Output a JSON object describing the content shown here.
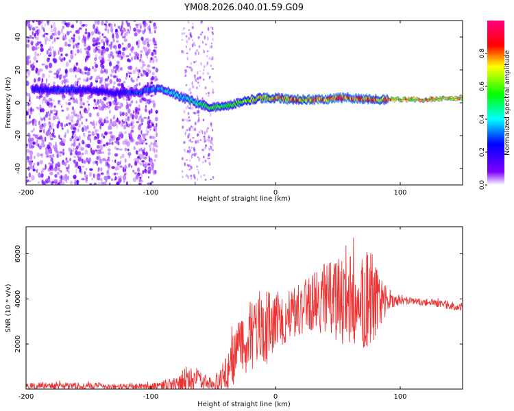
{
  "figure": {
    "title": "YM08.2026.040.01.59.G09"
  },
  "chart_data": [
    {
      "type": "heatmap",
      "name": "spectrogram",
      "title": "",
      "xlabel": "Height of straight line (km)",
      "ylabel": "Frequency (Hz)",
      "xlim": [
        -200,
        150
      ],
      "ylim": [
        -50,
        50
      ],
      "xticks": [
        -200,
        -100,
        0,
        100
      ],
      "yticks": [
        -40,
        -20,
        0,
        20,
        40
      ],
      "ridge": {
        "x": [
          -190,
          -170,
          -150,
          -130,
          -110,
          -100,
          -90,
          -80,
          -70,
          -60,
          -50,
          -40,
          -30,
          -20,
          -10,
          0,
          10,
          20,
          30,
          40,
          50,
          60,
          70,
          80,
          88,
          100,
          120,
          150
        ],
        "freq_hz": [
          8,
          8,
          8,
          6,
          6,
          8,
          8,
          5,
          2,
          -1,
          -3,
          -2,
          0,
          2,
          3,
          3,
          2,
          2,
          2,
          2,
          3,
          3,
          2,
          2,
          2,
          2,
          2,
          3
        ],
        "amplitude": [
          0.25,
          0.3,
          0.25,
          0.25,
          0.3,
          0.35,
          0.4,
          0.45,
          0.45,
          0.5,
          0.6,
          0.55,
          0.6,
          0.7,
          0.75,
          0.8,
          0.8,
          0.8,
          0.85,
          0.85,
          0.9,
          0.9,
          0.85,
          0.85,
          0.8,
          0.75,
          0.75,
          0.75
        ]
      },
      "noise_region": {
        "x_from": -200,
        "x_to": -95,
        "freq_range": [
          -50,
          50
        ]
      },
      "colorbar": {
        "label": "Normalized spectral amplitude",
        "range": [
          0,
          1
        ],
        "ticks": [
          "0.0",
          "0.2",
          "0.4",
          "0.6",
          "0.8"
        ]
      }
    },
    {
      "type": "line",
      "name": "snr",
      "title": "",
      "xlabel": "Height of straight line (km)",
      "ylabel": "SNR (10 * v/v)",
      "xlim": [
        -200,
        150
      ],
      "ylim": [
        0,
        7200
      ],
      "xticks": [
        -200,
        -100,
        0,
        100
      ],
      "yticks": [
        2000,
        4000,
        6000
      ],
      "series": [
        {
          "name": "SNR",
          "color": "#ee3333",
          "x": [
            -200,
            -180,
            -160,
            -140,
            -120,
            -100,
            -80,
            -70,
            -60,
            -50,
            -40,
            -30,
            -20,
            -10,
            0,
            10,
            20,
            30,
            40,
            50,
            60,
            70,
            80,
            90,
            100,
            110,
            120,
            130,
            140,
            150
          ],
          "baseline": [
            150,
            150,
            150,
            130,
            120,
            120,
            200,
            400,
            300,
            200,
            600,
            1800,
            2400,
            2700,
            3000,
            3300,
            3600,
            3900,
            4000,
            4000,
            4000,
            4000,
            4000,
            4000,
            3950,
            3900,
            3850,
            3800,
            3700,
            3650
          ],
          "spread": [
            150,
            150,
            150,
            150,
            130,
            130,
            350,
            700,
            450,
            250,
            800,
            1400,
            1600,
            1800,
            1500,
            1200,
            1200,
            1300,
            1600,
            2000,
            2100,
            2300,
            1900,
            500,
            200,
            180,
            180,
            180,
            180,
            180
          ]
        }
      ]
    }
  ]
}
